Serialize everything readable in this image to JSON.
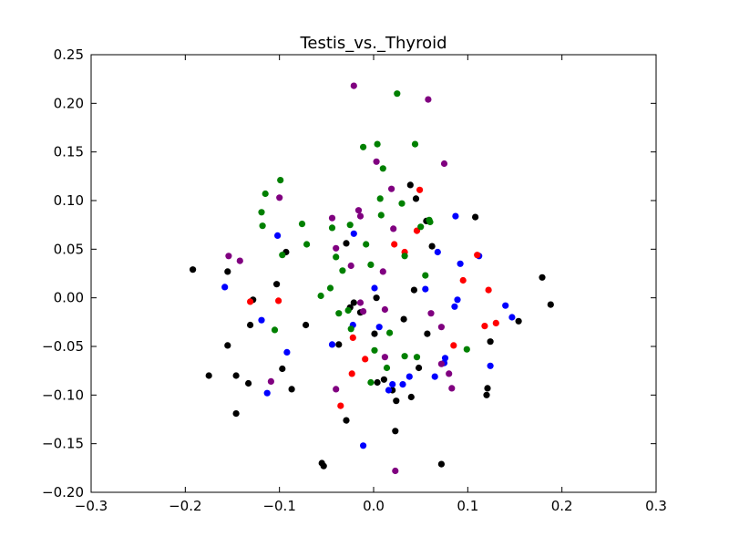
{
  "chart_data": {
    "type": "scatter",
    "title": "Testis_vs._Thyroid",
    "xlabel": "",
    "ylabel": "",
    "xlim": [
      -0.3,
      0.3
    ],
    "ylim": [
      -0.2,
      0.25
    ],
    "grid": false,
    "x_ticks": [
      "−0.3",
      "−0.2",
      "−0.1",
      "0.0",
      "0.1",
      "0.2",
      "0.3"
    ],
    "y_ticks": [
      "−0.20",
      "−0.15",
      "−0.10",
      "−0.05",
      "0.00",
      "0.05",
      "0.10",
      "0.15",
      "0.20",
      "0.25"
    ],
    "series": [
      {
        "color": "#000000",
        "points": [
          [
            -0.192,
            0.029
          ],
          [
            -0.155,
            0.027
          ],
          [
            -0.155,
            -0.049
          ],
          [
            -0.175,
            -0.08
          ],
          [
            -0.146,
            -0.08
          ],
          [
            -0.146,
            -0.119
          ],
          [
            -0.128,
            -0.002
          ],
          [
            -0.131,
            -0.028
          ],
          [
            -0.133,
            -0.088
          ],
          [
            -0.103,
            0.014
          ],
          [
            -0.093,
            0.047
          ],
          [
            -0.097,
            -0.073
          ],
          [
            -0.087,
            -0.094
          ],
          [
            -0.072,
            -0.028
          ],
          [
            -0.055,
            -0.17
          ],
          [
            -0.053,
            -0.173
          ],
          [
            -0.029,
            0.056
          ],
          [
            -0.025,
            -0.01
          ],
          [
            -0.021,
            -0.005
          ],
          [
            -0.014,
            -0.015
          ],
          [
            -0.037,
            -0.048
          ],
          [
            -0.029,
            -0.126
          ],
          [
            0.003,
            0.0
          ],
          [
            0.001,
            -0.037
          ],
          [
            0.004,
            -0.087
          ],
          [
            0.011,
            -0.084
          ],
          [
            0.02,
            -0.095
          ],
          [
            0.024,
            -0.106
          ],
          [
            0.023,
            -0.137
          ],
          [
            0.032,
            -0.022
          ],
          [
            0.039,
            0.116
          ],
          [
            0.045,
            0.102
          ],
          [
            0.043,
            0.008
          ],
          [
            0.048,
            -0.072
          ],
          [
            0.04,
            -0.102
          ],
          [
            0.056,
            0.079
          ],
          [
            0.062,
            0.053
          ],
          [
            0.057,
            -0.037
          ],
          [
            0.072,
            -0.171
          ],
          [
            0.108,
            0.083
          ],
          [
            0.12,
            -0.1
          ],
          [
            0.121,
            -0.093
          ],
          [
            0.124,
            -0.045
          ],
          [
            0.154,
            -0.024
          ],
          [
            0.179,
            0.021
          ],
          [
            0.188,
            -0.007
          ]
        ]
      },
      {
        "color": "#0000ff",
        "points": [
          [
            -0.158,
            0.011
          ],
          [
            -0.119,
            -0.023
          ],
          [
            -0.102,
            0.064
          ],
          [
            -0.113,
            -0.098
          ],
          [
            -0.092,
            -0.056
          ],
          [
            -0.021,
            0.066
          ],
          [
            -0.022,
            -0.028
          ],
          [
            -0.044,
            -0.048
          ],
          [
            -0.011,
            -0.152
          ],
          [
            0.001,
            0.01
          ],
          [
            0.006,
            -0.03
          ],
          [
            0.016,
            -0.095
          ],
          [
            0.02,
            -0.089
          ],
          [
            0.031,
            -0.089
          ],
          [
            0.038,
            -0.081
          ],
          [
            0.055,
            0.009
          ],
          [
            0.068,
            0.047
          ],
          [
            0.065,
            -0.081
          ],
          [
            0.075,
            -0.067
          ],
          [
            0.076,
            -0.062
          ],
          [
            0.086,
            -0.009
          ],
          [
            0.087,
            0.084
          ],
          [
            0.089,
            -0.002
          ],
          [
            0.092,
            0.035
          ],
          [
            0.112,
            0.043
          ],
          [
            0.124,
            -0.07
          ],
          [
            0.14,
            -0.008
          ],
          [
            0.147,
            -0.02
          ]
        ]
      },
      {
        "color": "#ff0000",
        "points": [
          [
            -0.131,
            -0.004
          ],
          [
            -0.101,
            -0.003
          ],
          [
            -0.022,
            -0.041
          ],
          [
            -0.023,
            -0.078
          ],
          [
            -0.009,
            -0.063
          ],
          [
            -0.035,
            -0.111
          ],
          [
            0.022,
            0.055
          ],
          [
            0.033,
            0.047
          ],
          [
            0.046,
            0.069
          ],
          [
            0.049,
            0.111
          ],
          [
            0.085,
            -0.049
          ],
          [
            0.095,
            0.018
          ],
          [
            0.11,
            0.044
          ],
          [
            0.118,
            -0.029
          ],
          [
            0.122,
            0.008
          ],
          [
            0.13,
            -0.026
          ]
        ]
      },
      {
        "color": "#008000",
        "points": [
          [
            -0.119,
            0.088
          ],
          [
            -0.118,
            0.074
          ],
          [
            -0.115,
            0.107
          ],
          [
            -0.105,
            -0.033
          ],
          [
            -0.099,
            0.121
          ],
          [
            -0.097,
            0.044
          ],
          [
            -0.076,
            0.076
          ],
          [
            -0.071,
            0.055
          ],
          [
            -0.056,
            0.002
          ],
          [
            -0.046,
            0.01
          ],
          [
            -0.044,
            0.072
          ],
          [
            -0.04,
            0.042
          ],
          [
            -0.037,
            -0.016
          ],
          [
            -0.033,
            0.028
          ],
          [
            -0.027,
            -0.013
          ],
          [
            -0.025,
            0.075
          ],
          [
            -0.024,
            -0.032
          ],
          [
            -0.011,
            0.155
          ],
          [
            -0.008,
            0.055
          ],
          [
            -0.003,
            0.034
          ],
          [
            -0.003,
            -0.087
          ],
          [
            0.001,
            -0.054
          ],
          [
            0.004,
            0.158
          ],
          [
            0.007,
            0.102
          ],
          [
            0.008,
            0.085
          ],
          [
            0.01,
            0.133
          ],
          [
            0.014,
            -0.072
          ],
          [
            0.017,
            -0.036
          ],
          [
            0.025,
            0.21
          ],
          [
            0.03,
            0.097
          ],
          [
            0.033,
            0.043
          ],
          [
            0.033,
            -0.06
          ],
          [
            0.044,
            0.158
          ],
          [
            0.046,
            -0.061
          ],
          [
            0.05,
            0.073
          ],
          [
            0.055,
            0.023
          ],
          [
            0.059,
            0.08
          ],
          [
            0.06,
            0.078
          ],
          [
            0.099,
            -0.053
          ]
        ]
      },
      {
        "color": "#800080",
        "points": [
          [
            -0.154,
            0.043
          ],
          [
            -0.142,
            0.038
          ],
          [
            -0.109,
            -0.086
          ],
          [
            -0.1,
            0.103
          ],
          [
            -0.044,
            0.082
          ],
          [
            -0.04,
            0.051
          ],
          [
            -0.04,
            -0.094
          ],
          [
            -0.021,
            0.218
          ],
          [
            -0.024,
            0.033
          ],
          [
            -0.016,
            0.09
          ],
          [
            -0.014,
            0.084
          ],
          [
            -0.014,
            -0.005
          ],
          [
            -0.011,
            -0.014
          ],
          [
            0.003,
            0.14
          ],
          [
            0.01,
            0.027
          ],
          [
            0.012,
            -0.012
          ],
          [
            0.012,
            -0.061
          ],
          [
            0.019,
            0.112
          ],
          [
            0.021,
            0.071
          ],
          [
            0.023,
            -0.178
          ],
          [
            0.058,
            0.204
          ],
          [
            0.061,
            -0.016
          ],
          [
            0.072,
            -0.03
          ],
          [
            0.072,
            -0.068
          ],
          [
            0.075,
            0.138
          ],
          [
            0.08,
            -0.078
          ],
          [
            0.083,
            -0.093
          ]
        ]
      }
    ]
  }
}
